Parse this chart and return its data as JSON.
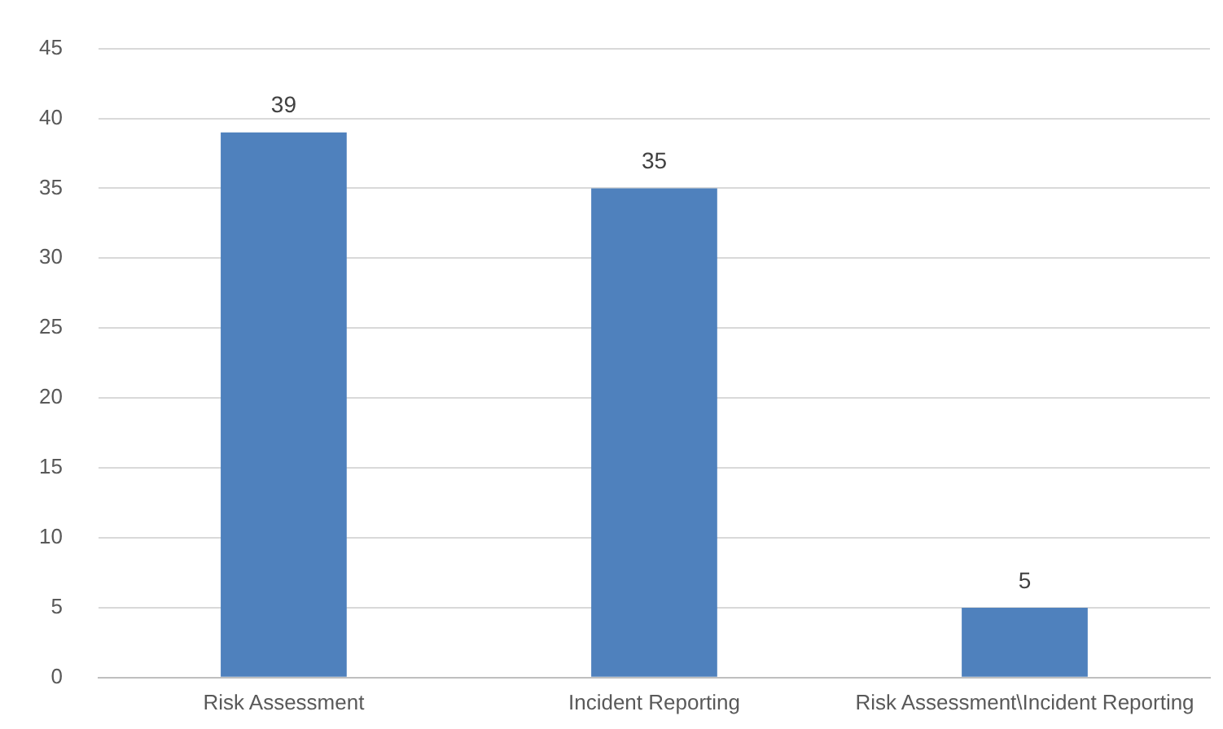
{
  "chart_data": {
    "type": "bar",
    "categories": [
      "Risk Assessment",
      "Incident Reporting",
      "Risk Assessment\\Incident Reporting"
    ],
    "values": [
      39,
      35,
      5
    ],
    "color": "#4f81bd",
    "ylim": [
      0,
      45
    ],
    "yticks": [
      0,
      5,
      10,
      15,
      20,
      25,
      30,
      35,
      40,
      45
    ],
    "grid": "y",
    "data_labels": true
  }
}
